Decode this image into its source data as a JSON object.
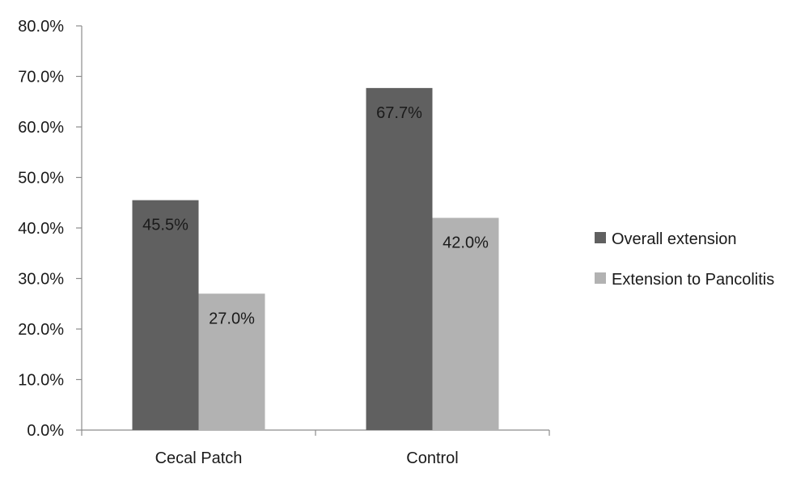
{
  "chart_data": {
    "type": "bar",
    "categories": [
      "Cecal Patch",
      "Control"
    ],
    "series": [
      {
        "name": "Overall extension",
        "values": [
          45.5,
          67.7
        ],
        "labels": [
          "45.5%",
          "67.7%"
        ],
        "color": "#606060"
      },
      {
        "name": "Extension to Pancolitis",
        "values": [
          27.0,
          42.0
        ],
        "labels": [
          "27.0%",
          "42.0%"
        ],
        "color": "#b2b2b2"
      }
    ],
    "ylim": [
      0,
      80
    ],
    "yticks": [
      0,
      10,
      20,
      30,
      40,
      50,
      60,
      70,
      80
    ],
    "ytick_labels": [
      "0.0%",
      "10.0%",
      "20.0%",
      "30.0%",
      "40.0%",
      "50.0%",
      "60.0%",
      "70.0%",
      "80.0%"
    ],
    "grid": false,
    "legend_position": "right",
    "title": "",
    "xlabel": "",
    "ylabel": ""
  }
}
